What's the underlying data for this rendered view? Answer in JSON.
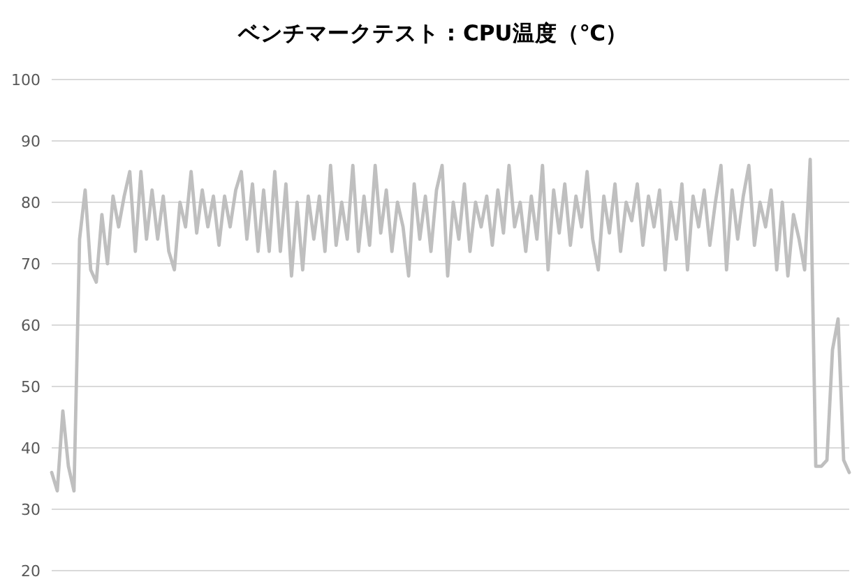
{
  "chart_data": {
    "type": "line",
    "title": "ベンチマークテスト : CPU温度（℃）",
    "categories": [
      null,
      null,
      null,
      null,
      null,
      null,
      null,
      null,
      null,
      null,
      null,
      null,
      null,
      null,
      null,
      null,
      null,
      null,
      null,
      null,
      null,
      null,
      null,
      null,
      null,
      null,
      null,
      null,
      null,
      null,
      null,
      null,
      null,
      null,
      null,
      null,
      null,
      null,
      null,
      null,
      null,
      null,
      null,
      null,
      null,
      null,
      null,
      null,
      null,
      null,
      null,
      null,
      null,
      null,
      null,
      null,
      null,
      null,
      null,
      null,
      null,
      null,
      null,
      null,
      null,
      null,
      null,
      null,
      null,
      null,
      null,
      null,
      null,
      null,
      null,
      null,
      null,
      null,
      null,
      null,
      null,
      null,
      null,
      null,
      null,
      null,
      null,
      null,
      null,
      null,
      null,
      null,
      null,
      null,
      null,
      null,
      null,
      null,
      null,
      null,
      null,
      null,
      null,
      null,
      null,
      null,
      null,
      null,
      null,
      null,
      null,
      null,
      null,
      null,
      null,
      null,
      null,
      null,
      null,
      null,
      null,
      null,
      null,
      null,
      null,
      null,
      null,
      null,
      null,
      null,
      null,
      null,
      null,
      null,
      null,
      null,
      null,
      null,
      null,
      null,
      null,
      null,
      null,
      null
    ],
    "series": [
      {
        "color": "#bfbfbf",
        "values": [
          36,
          33,
          46,
          37,
          33,
          74,
          82,
          69,
          67,
          78,
          70,
          81,
          76,
          81,
          85,
          72,
          85,
          74,
          82,
          74,
          81,
          72,
          69,
          80,
          76,
          85,
          75,
          82,
          76,
          81,
          73,
          81,
          76,
          82,
          85,
          74,
          83,
          72,
          82,
          72,
          85,
          72,
          83,
          68,
          80,
          69,
          81,
          74,
          81,
          72,
          86,
          73,
          80,
          74,
          86,
          72,
          81,
          73,
          86,
          75,
          82,
          72,
          80,
          76,
          68,
          83,
          74,
          81,
          72,
          82,
          86,
          68,
          80,
          74,
          83,
          72,
          80,
          76,
          81,
          73,
          82,
          75,
          86,
          76,
          80,
          72,
          81,
          74,
          86,
          69,
          82,
          75,
          83,
          73,
          81,
          76,
          85,
          74,
          69,
          81,
          75,
          83,
          72,
          80,
          77,
          83,
          73,
          81,
          76,
          82,
          69,
          80,
          74,
          83,
          69,
          81,
          76,
          82,
          73,
          80,
          86,
          69,
          82,
          74,
          81,
          86,
          73,
          80,
          76,
          82,
          69,
          80,
          68,
          78,
          74,
          69,
          87,
          37,
          37,
          38,
          56,
          61,
          38,
          36
        ]
      }
    ],
    "ylim": [
      20,
      100
    ],
    "yticks": [
      20,
      30,
      40,
      50,
      60,
      70,
      80,
      90,
      100
    ],
    "grid": "y"
  }
}
